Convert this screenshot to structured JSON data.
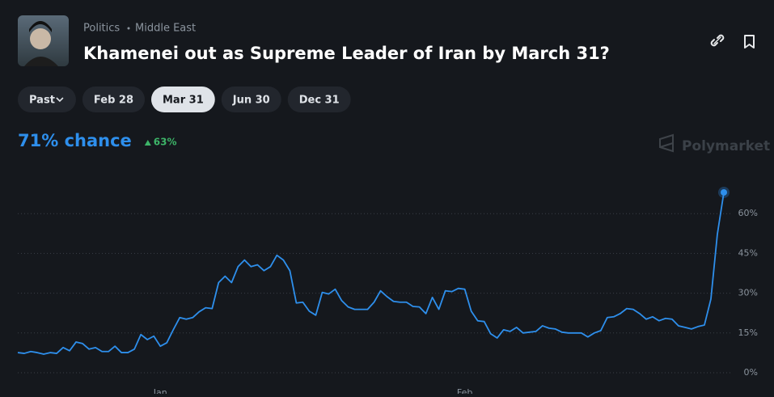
{
  "header": {
    "breadcrumb": [
      "Politics",
      "Middle East"
    ],
    "title": "Khamenei out as Supreme Leader of Iran by March 31?"
  },
  "tabs": {
    "items": [
      "Past",
      "Feb 28",
      "Mar 31",
      "Jun 30",
      "Dec 31"
    ],
    "selected": 2
  },
  "summary": {
    "chance": "71% chance",
    "change": "63%"
  },
  "brand": "Polymarket",
  "chart_data": {
    "type": "line",
    "color": "#2e8fec",
    "categories": [
      null,
      null,
      null,
      null,
      null,
      null,
      null,
      null,
      null,
      null,
      null,
      null,
      null,
      null,
      null,
      null,
      null,
      null,
      null,
      null,
      null,
      null,
      "Jan",
      null,
      null,
      null,
      null,
      null,
      null,
      null,
      null,
      null,
      null,
      null,
      null,
      null,
      null,
      null,
      null,
      null,
      null,
      null,
      null,
      null,
      null,
      null,
      null,
      null,
      null,
      null,
      null,
      null,
      null,
      null,
      null,
      null,
      null,
      null,
      null,
      null,
      null,
      null,
      null,
      null,
      null,
      null,
      null,
      null,
      null,
      "Feb",
      null,
      null,
      null,
      null,
      null,
      null,
      null,
      null,
      null,
      null,
      null,
      null,
      null,
      null,
      null,
      null,
      null,
      null,
      null,
      null,
      null,
      null,
      null,
      null,
      null,
      null,
      null,
      null,
      null,
      null,
      null,
      null,
      null,
      null,
      null,
      null,
      null,
      null,
      null,
      null
    ],
    "values": [
      7.6,
      7.3,
      8,
      7.6,
      7,
      7.6,
      7.3,
      9.5,
      8.3,
      11.6,
      11,
      8.9,
      9.5,
      8,
      8,
      10,
      7.6,
      7.6,
      8.9,
      14.4,
      12.5,
      13.8,
      10,
      11.3,
      16.2,
      20.8,
      20.2,
      20.8,
      23,
      24.5,
      24.2,
      34,
      36.4,
      34,
      40,
      42.5,
      40,
      40.7,
      38.5,
      40,
      44.3,
      42.5,
      38.5,
      26.3,
      26.6,
      23.2,
      21.7,
      30.3,
      29.7,
      31.5,
      27.2,
      24.8,
      23.9,
      23.9,
      23.9,
      26.6,
      30.9,
      28.7,
      26.9,
      26.6,
      26.6,
      25,
      24.8,
      22.3,
      28.4,
      23.9,
      30.9,
      30.6,
      31.8,
      31.5,
      23.2,
      19.6,
      19.3,
      14.7,
      13.1,
      16.2,
      15.6,
      17.1,
      15,
      15.3,
      15.6,
      17.7,
      16.8,
      16.5,
      15.3,
      15,
      15,
      15,
      13.5,
      15,
      15.9,
      20.8,
      21.1,
      22.3,
      24.2,
      23.9,
      22.3,
      20.2,
      21.1,
      19.6,
      20.5,
      20.2,
      17.7,
      17.1,
      16.5,
      17.4,
      18,
      27.8,
      52.3,
      68
    ],
    "ylim": [
      0,
      75
    ],
    "yticks": [
      {
        "value": 0,
        "label": "0%"
      },
      {
        "value": 15,
        "label": "15%"
      },
      {
        "value": 30,
        "label": "30%"
      },
      {
        "value": 45,
        "label": "45%"
      },
      {
        "value": 60,
        "label": "60%"
      }
    ],
    "grid": true
  }
}
